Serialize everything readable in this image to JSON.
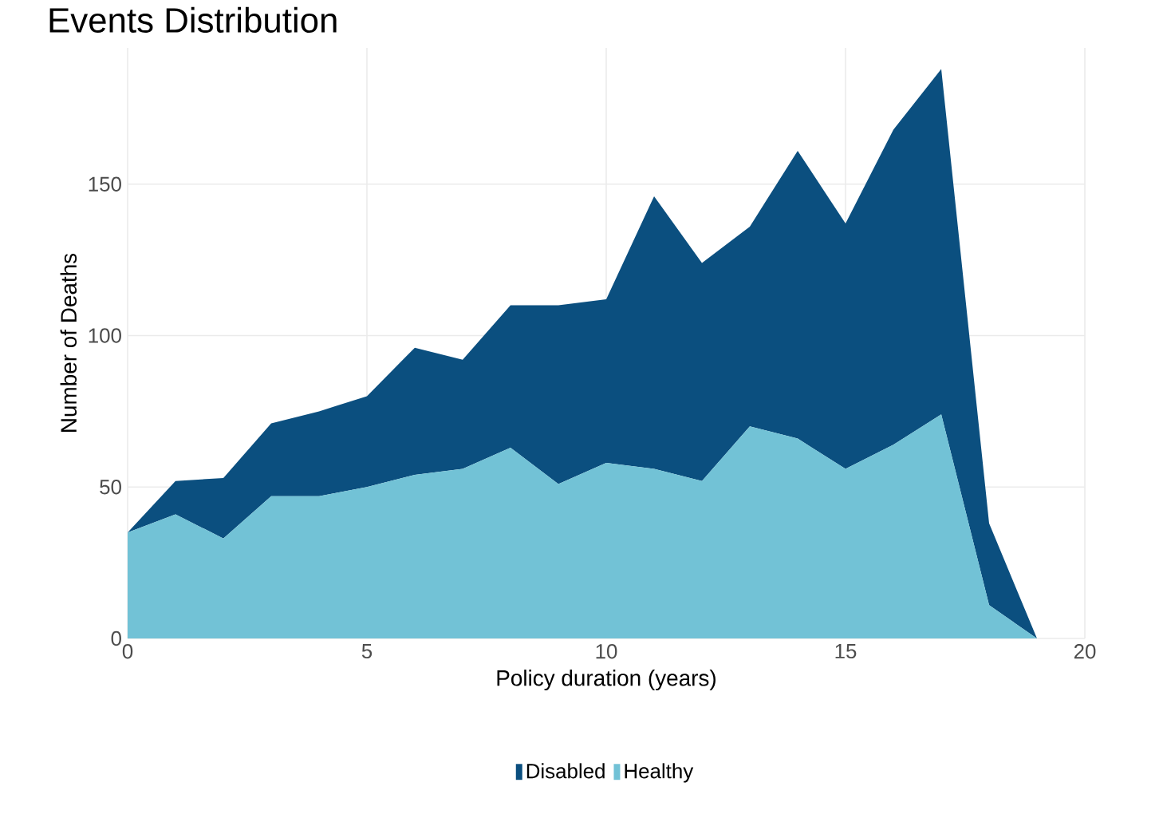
{
  "chart_data": {
    "type": "area",
    "title": "Events Distribution",
    "xlabel": "Policy duration (years)",
    "ylabel": "Number of Deaths",
    "x": [
      0,
      1,
      2,
      3,
      4,
      5,
      6,
      7,
      8,
      9,
      10,
      11,
      12,
      13,
      14,
      15,
      16,
      17,
      18,
      19
    ],
    "stacked": true,
    "series": [
      {
        "name": "Healthy",
        "color": "#72c2d6",
        "values": [
          35,
          41,
          33,
          47,
          47,
          50,
          54,
          56,
          63,
          51,
          58,
          56,
          52,
          70,
          66,
          56,
          64,
          74,
          11,
          0
        ]
      },
      {
        "name": "Disabled",
        "color": "#0b4f7f",
        "values": [
          0,
          11,
          20,
          24,
          28,
          30,
          42,
          36,
          47,
          59,
          54,
          90,
          72,
          66,
          95,
          81,
          104,
          114,
          27,
          0
        ]
      }
    ],
    "xlim": [
      0,
      20
    ],
    "ylim": [
      0,
      195
    ],
    "xticks": [
      0,
      5,
      10,
      15,
      20
    ],
    "yticks": [
      0,
      50,
      100,
      150
    ],
    "grid": true,
    "legend": "bottom",
    "marker": "none"
  }
}
